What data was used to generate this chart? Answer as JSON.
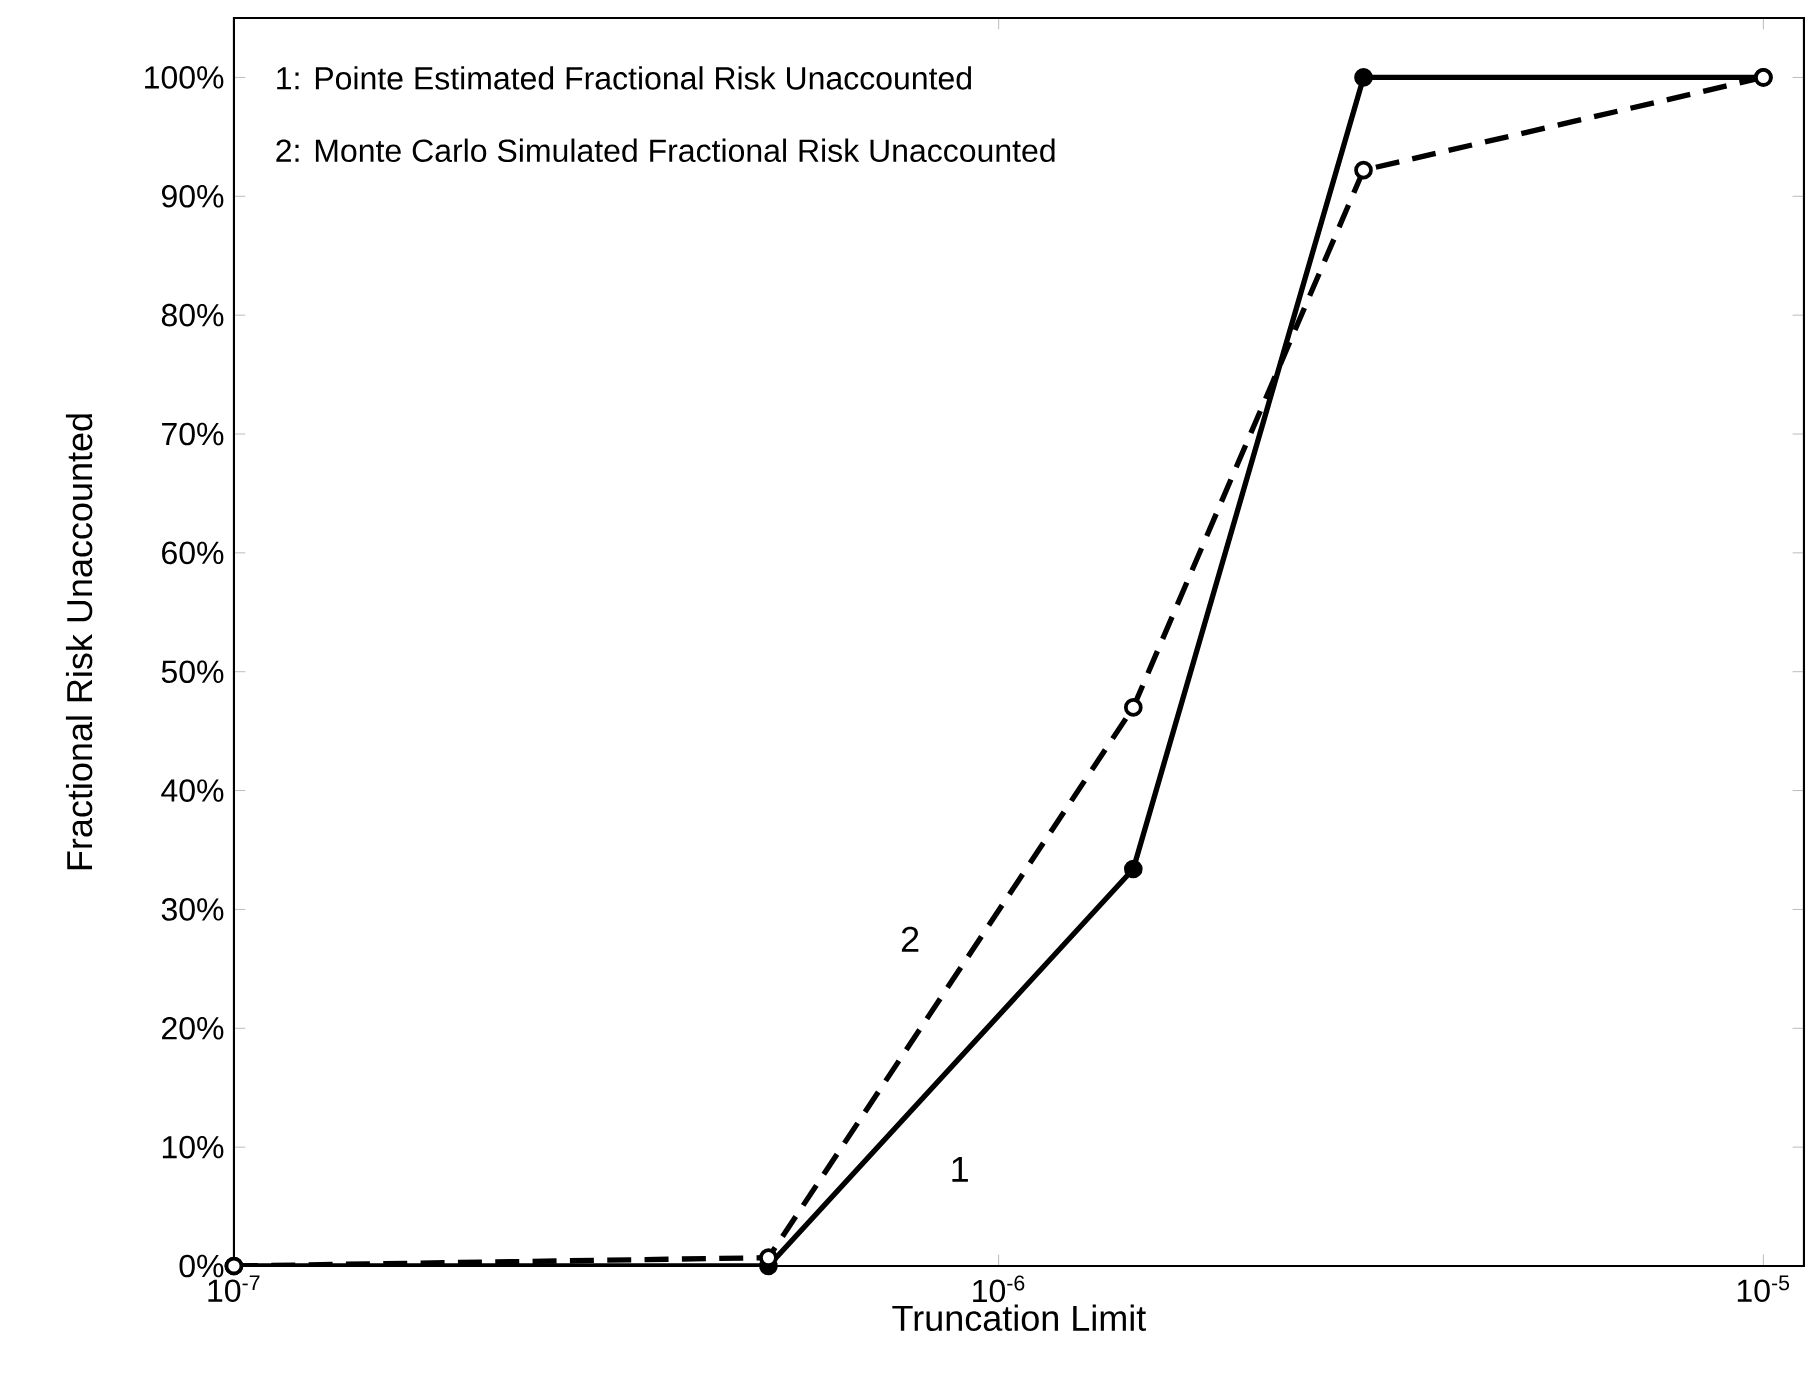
{
  "chart_data": {
    "type": "line",
    "xlabel": "Truncation Limit",
    "ylabel": "Fractional Risk Unaccounted",
    "annotations": [
      "1: Pointe Estimated Fractional Risk Unaccounted",
      "2: Monte Carlo Simulated Fractional Risk Unaccounted"
    ],
    "x": [
      1e-07,
      5e-07,
      1.5e-06,
      3e-06,
      1e-05
    ],
    "series": [
      {
        "name": "1",
        "color": "#000000",
        "line_style": "solid",
        "marker": "circle",
        "values": [
          0,
          0,
          33.4,
          100,
          100
        ]
      },
      {
        "name": "2",
        "color": "#000000",
        "line_style": "dashed",
        "marker": "circle",
        "values": [
          0,
          0.7,
          47,
          92.2,
          100
        ]
      }
    ],
    "log": "x",
    "xlim": [
      1e-07,
      1.13e-05
    ],
    "xticks": [
      {
        "value": 1e-07,
        "label": "10$^{-7}$"
      },
      {
        "value": 1e-06,
        "label": "10$^{-6}$"
      },
      {
        "value": 1e-05,
        "label": "10$^{-5}$"
      }
    ],
    "ylim": [
      0,
      105
    ],
    "yticks": [
      {
        "value": 0,
        "label": "0%"
      },
      {
        "value": 10,
        "label": "10%"
      },
      {
        "value": 20,
        "label": "20%"
      },
      {
        "value": 30,
        "label": "30%"
      },
      {
        "value": 40,
        "label": "40%"
      },
      {
        "value": 50,
        "label": "50%"
      },
      {
        "value": 60,
        "label": "60%"
      },
      {
        "value": 70,
        "label": "70%"
      },
      {
        "value": 80,
        "label": "80%"
      },
      {
        "value": 90,
        "label": "90%"
      },
      {
        "value": 100,
        "label": "100%"
      }
    ],
    "grid": false
  }
}
